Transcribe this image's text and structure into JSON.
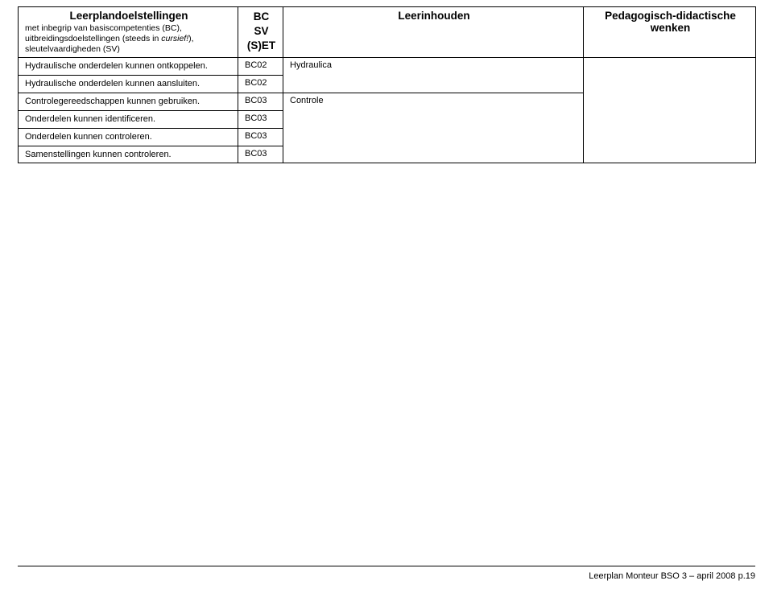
{
  "header": {
    "col1_title": "Leerplandoelstellingen",
    "col1_sub_line1": "met inbegrip van basiscompetenties (BC),",
    "col1_sub_line2_a": "uitbreidingsdoelstellingen (steeds in ",
    "col1_sub_line2_b": "cursief!",
    "col1_sub_line2_c": "),",
    "col1_sub_line3": "sleutelvaardigheden (SV)",
    "col2_line1": "BC",
    "col2_line2": "SV",
    "col2_line3": "(S)ET",
    "col3_title": "Leerinhouden",
    "col4_title": "Pedagogisch-didactische wenken"
  },
  "rows": [
    {
      "text": "Hydraulische onderdelen kunnen ontkoppelen.",
      "code": "BC02",
      "content": "Hydraulica",
      "group_start": true,
      "group_span": 2
    },
    {
      "text": "Hydraulische onderdelen kunnen aansluiten.",
      "code": "BC02"
    },
    {
      "text": "Controlegereedschappen kunnen gebruiken.",
      "code": "BC03",
      "content": "Controle",
      "group_start": true,
      "group_span": 4
    },
    {
      "text": "Onderdelen kunnen identificeren.",
      "code": "BC03"
    },
    {
      "text": "Onderdelen kunnen controleren.",
      "code": "BC03"
    },
    {
      "text": "Samenstellingen kunnen controleren.",
      "code": "BC03"
    }
  ],
  "footer": "Leerplan Monteur BSO 3 – april 2008 p.19"
}
